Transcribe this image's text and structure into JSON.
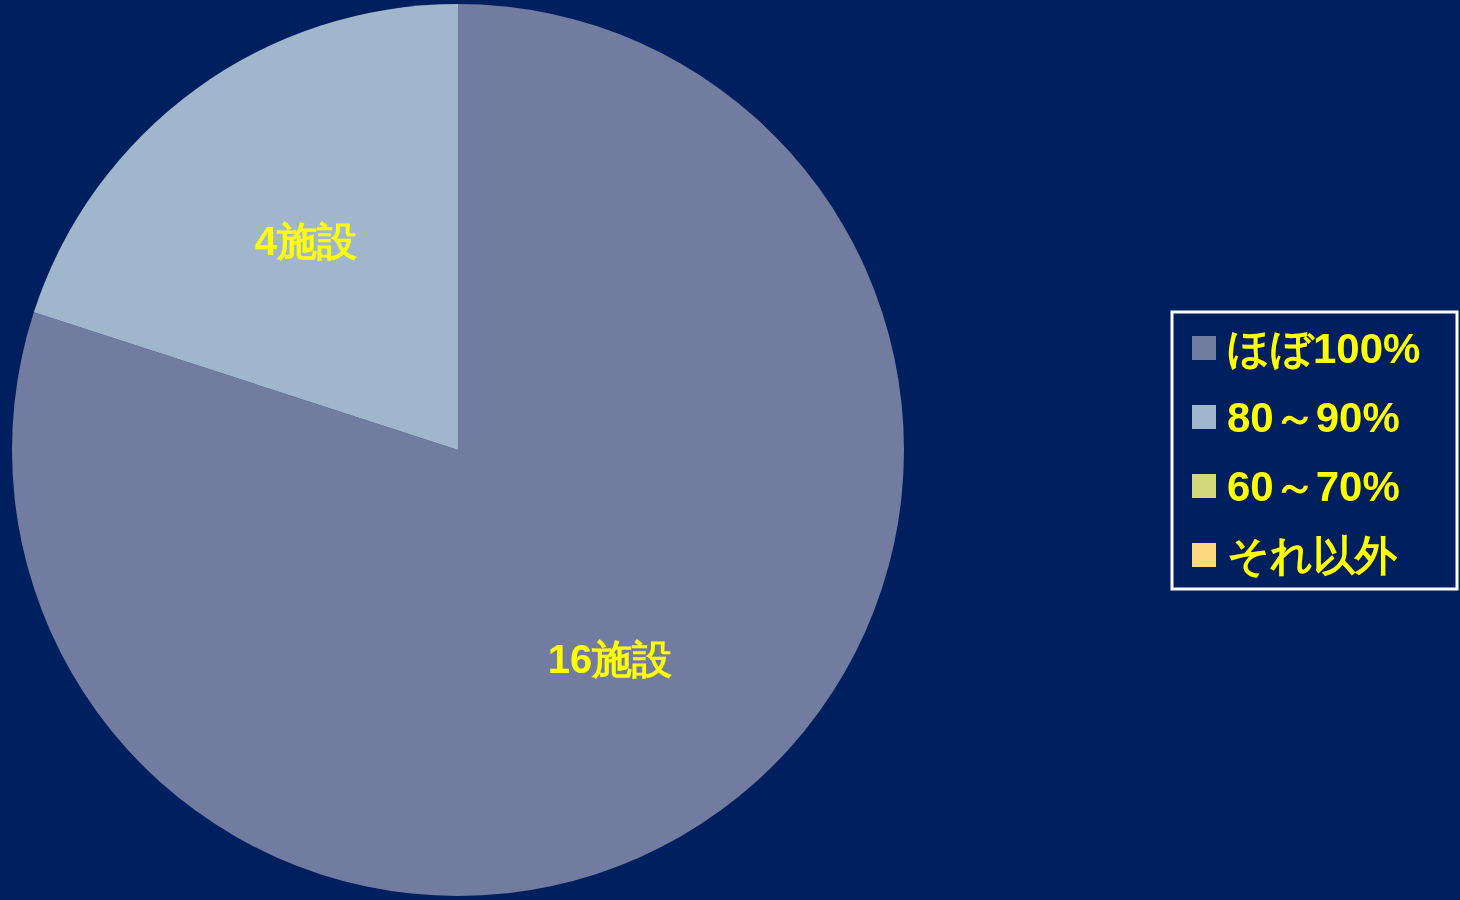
{
  "chart_data": {
    "type": "pie",
    "categories": [
      "ほぼ100%",
      "80～90%",
      "60～70%",
      "それ以外"
    ],
    "values": [
      16,
      4,
      0,
      0
    ],
    "colors": [
      "#727ba0",
      "#a0b6cc",
      "#d3d97c",
      "#fcd97e"
    ],
    "value_labels": [
      "16施設",
      "4施設",
      null,
      null
    ],
    "legend": "right"
  }
}
